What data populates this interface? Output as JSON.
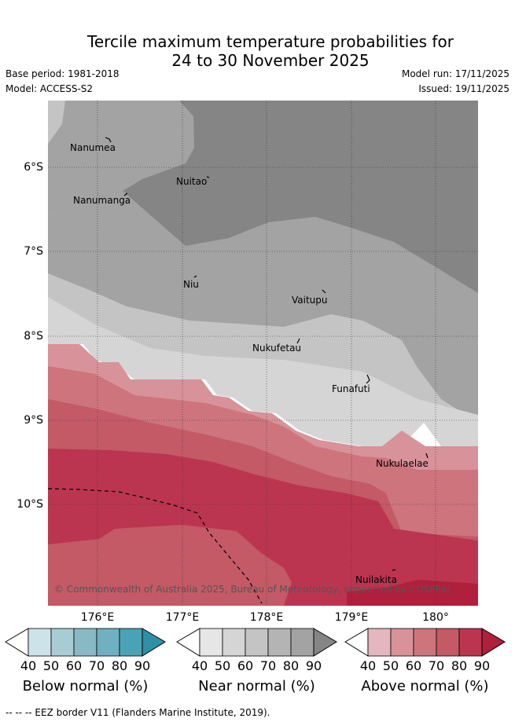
{
  "title_line1": "Tercile maximum temperature probabilities for",
  "title_line2": "24 to 30 November 2025",
  "base_period": "Base period: 1981-2018",
  "model": "Model: ACCESS-S2",
  "model_run": "Model run: 17/11/2025",
  "issued": "Issued: 19/11/2025",
  "lat_labels": [
    "6°S",
    "7°S",
    "8°S",
    "9°S",
    "10°S"
  ],
  "lon_labels": [
    "176°E",
    "177°E",
    "178°E",
    "179°E",
    "180°"
  ],
  "places": [
    "Nanumea",
    "Nuitao",
    "Nanumanga",
    "Niu",
    "Vaitupu",
    "Nukufetau",
    "Funafuti",
    "Nukulaelae",
    "Nuilakita"
  ],
  "copyright": "© Commonwealth of Australia 2025, Bureau of Meteorology, supported by COSPPac",
  "colorbars": [
    {
      "title": "Below normal (%)",
      "ticks": [
        "40",
        "50",
        "60",
        "70",
        "80",
        "90"
      ],
      "colors": [
        "#ffffff",
        "#cce3ea",
        "#a8ccd3",
        "#8ab9c6",
        "#6fb0c1",
        "#4aa3b5",
        "#2f8fa8"
      ]
    },
    {
      "title": "Near normal (%)",
      "ticks": [
        "40",
        "50",
        "60",
        "70",
        "80",
        "90"
      ],
      "colors": [
        "#ffffff",
        "#e6e6e6",
        "#d5d5d5",
        "#c4c4c4",
        "#b4b4b4",
        "#a3a3a3",
        "#858585"
      ]
    },
    {
      "title": "Above normal (%)",
      "ticks": [
        "40",
        "50",
        "60",
        "70",
        "80",
        "90"
      ],
      "colors": [
        "#ffffff",
        "#e3b7bd",
        "#d8929a",
        "#cd747c",
        "#c35a66",
        "#bb3550",
        "#b01f3c"
      ]
    }
  ],
  "footer": "--  --  -- EEZ border V11 (Flanders Marine Institute, 2019)."
}
